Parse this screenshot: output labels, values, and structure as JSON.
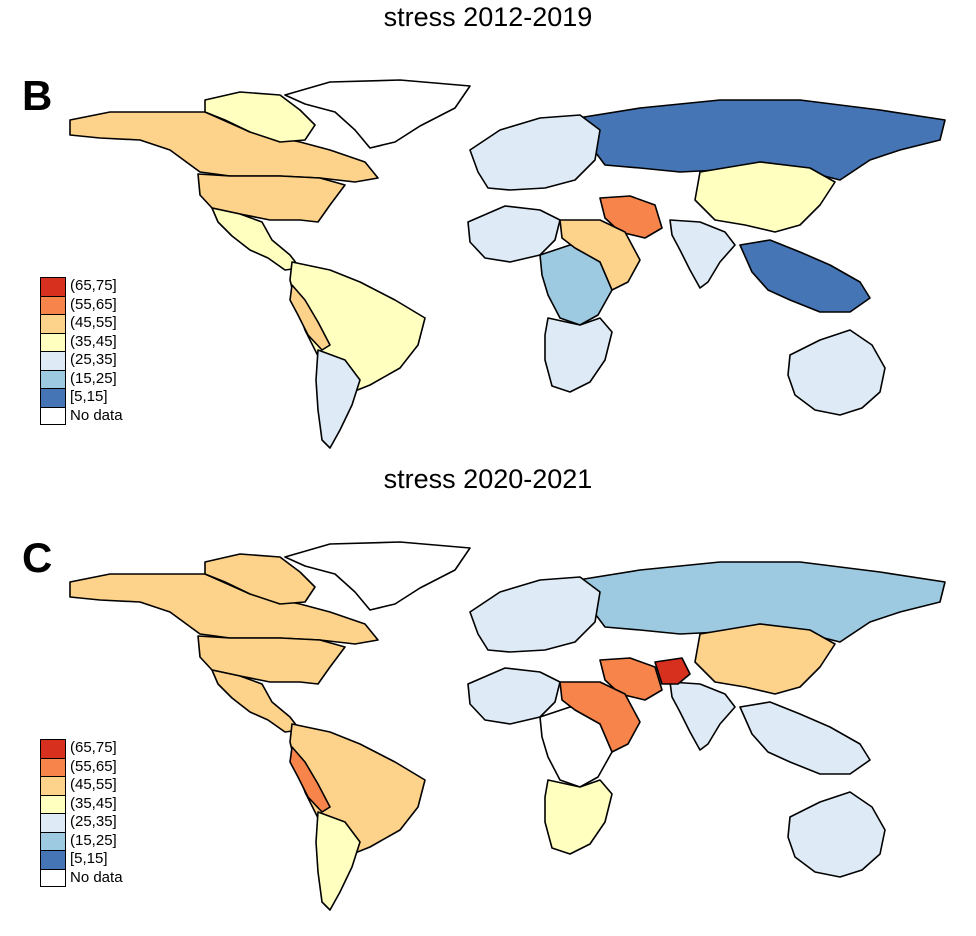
{
  "panels": [
    {
      "id": "B",
      "title": "stress 2012-2019",
      "legend": [
        {
          "label": "(65,75]",
          "color": "#d7301f"
        },
        {
          "label": "(55,65]",
          "color": "#f6844b"
        },
        {
          "label": "(45,55]",
          "color": "#fdd28a"
        },
        {
          "label": "(35,45]",
          "color": "#ffffc0"
        },
        {
          "label": "(25,35]",
          "color": "#deebf7"
        },
        {
          "label": "(15,25]",
          "color": "#9ecae1"
        },
        {
          "label": "[5,15]",
          "color": "#4575b4"
        },
        {
          "label": "No data",
          "color": "#ffffff"
        }
      ],
      "regions": {
        "north_america": "(45,55]",
        "canada_north": "(35,45]",
        "usa": "(45,55]",
        "mexico": "(35,45]",
        "south_america": "(35,45]",
        "peru": "(45,55]",
        "chile_argentina": "(25,35]",
        "russia": "[5,15]",
        "china": "(35,45]",
        "india": "(25,35]",
        "iran": "(55,65]",
        "europe": "(25,35]",
        "africa_west": "(25,35]",
        "africa_central": "(15,25]",
        "africa_east": "(45,55]",
        "africa_south": "(25,35]",
        "southeast_asia": "[5,15]",
        "australia": "(25,35]",
        "greenland": "No data"
      }
    },
    {
      "id": "C",
      "title": "stress 2020-2021",
      "legend": [
        {
          "label": "(65,75]",
          "color": "#d7301f"
        },
        {
          "label": "(55,65]",
          "color": "#f6844b"
        },
        {
          "label": "(45,55]",
          "color": "#fdd28a"
        },
        {
          "label": "(35,45]",
          "color": "#ffffc0"
        },
        {
          "label": "(25,35]",
          "color": "#deebf7"
        },
        {
          "label": "(15,25]",
          "color": "#9ecae1"
        },
        {
          "label": "[5,15]",
          "color": "#4575b4"
        },
        {
          "label": "No data",
          "color": "#ffffff"
        }
      ],
      "regions": {
        "north_america": "(45,55]",
        "canada_north": "(45,55]",
        "usa": "(45,55]",
        "mexico": "(45,55]",
        "south_america": "(45,55]",
        "peru": "(55,65]",
        "chile_argentina": "(35,45]",
        "russia": "(15,25]",
        "china": "(45,55]",
        "india": "(25,35]",
        "iran": "(55,65]",
        "afghanistan": "(65,75]",
        "europe": "(25,35]",
        "africa_west": "(25,35]",
        "africa_central": "No data",
        "africa_east": "(55,65]",
        "africa_south": "(35,45]",
        "southeast_asia": "(25,35]",
        "australia": "(25,35]",
        "greenland": "No data"
      }
    }
  ]
}
